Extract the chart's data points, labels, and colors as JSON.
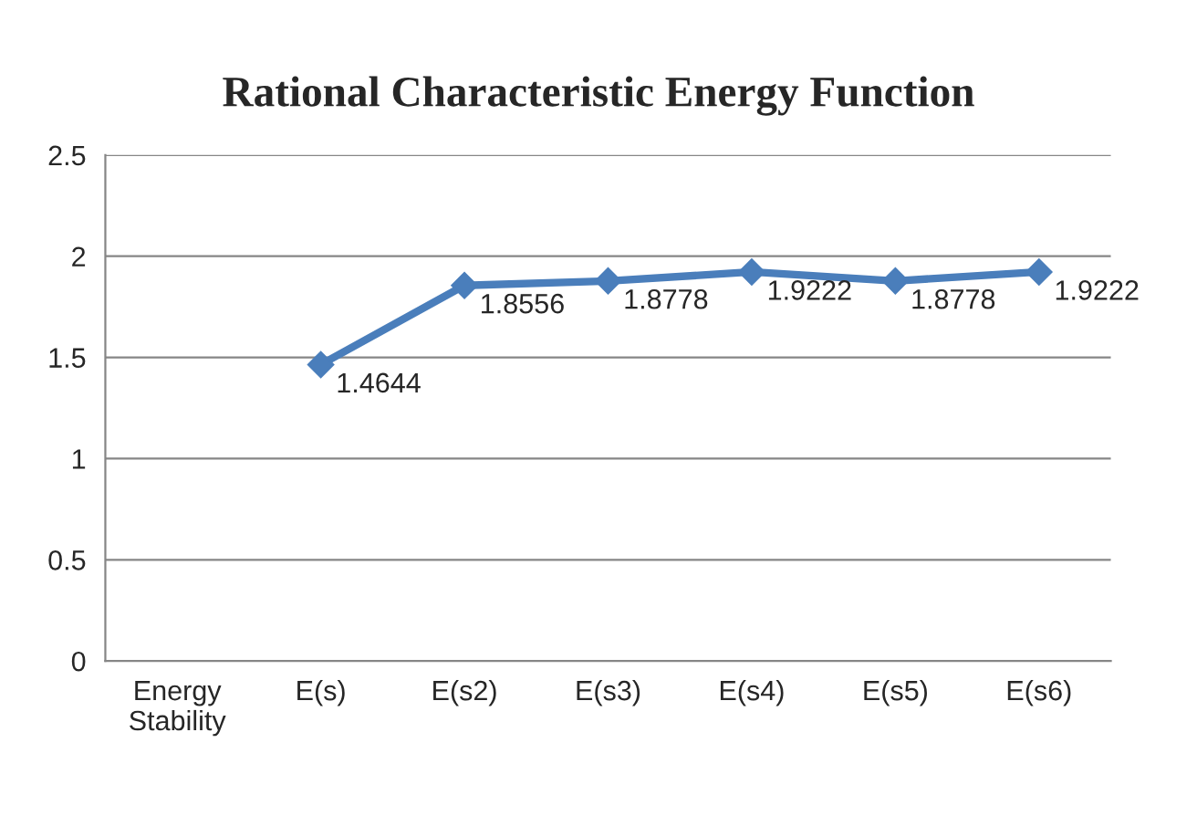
{
  "chart_data": {
    "type": "line",
    "title": "Rational Characteristic Energy Function",
    "categories": [
      "Energy\nStability",
      "E(s)",
      "E(s2)",
      "E(s3)",
      "E(s4)",
      "E(s5)",
      "E(s6)"
    ],
    "series": [
      {
        "color": "#4a7ebb",
        "values": [
          null,
          1.4644,
          1.8556,
          1.8778,
          1.9222,
          1.8778,
          1.9222
        ]
      }
    ],
    "ylim": [
      0,
      2.5
    ],
    "yticks": [
      0,
      0.5,
      1,
      1.5,
      2,
      2.5
    ],
    "grid": "y",
    "marker": "diamond",
    "line_style": "solid",
    "data_labels": true,
    "legend": false
  }
}
